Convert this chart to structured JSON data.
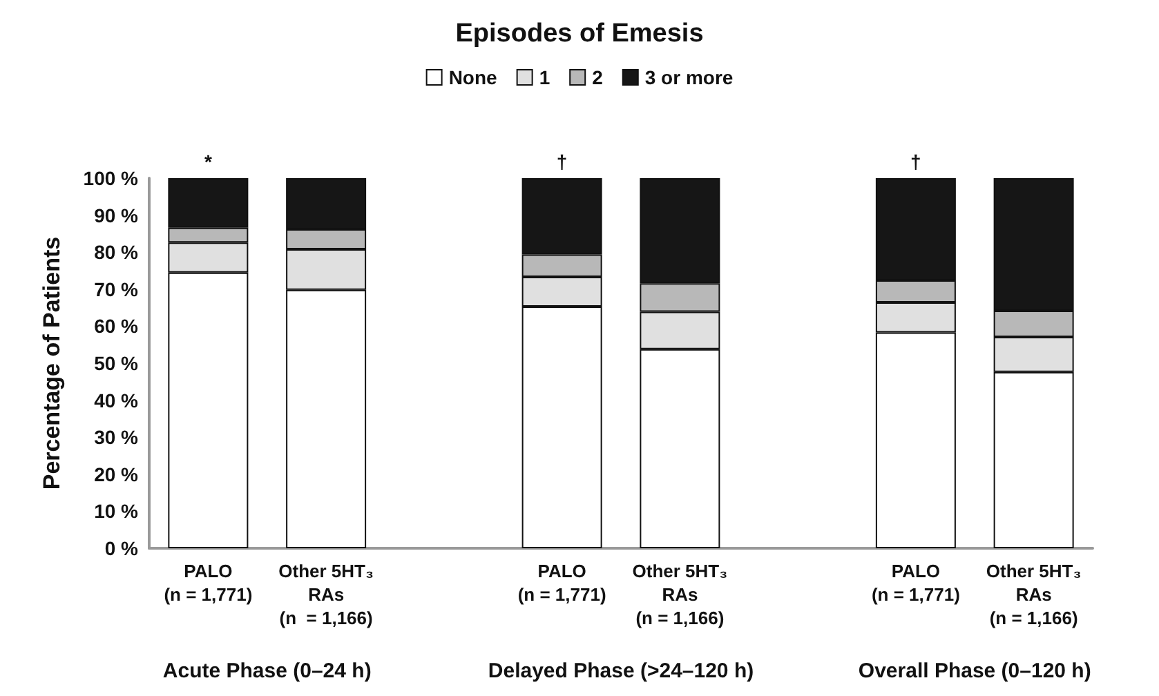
{
  "chart_data": {
    "type": "bar",
    "stacked": true,
    "title": "Episodes of Emesis",
    "ylabel": "Percentage of Patients",
    "categories": [
      "PALO\n(n = 1,771)",
      "Other 5HT₃\nRAs\n(n  = 1,166)",
      null,
      "PALO\n(n = 1,771)",
      "Other 5HT₃\nRAs\n(n = 1,166)",
      null,
      "PALO\n(n = 1,771)",
      "Other 5HT₃\nRAs\n(n = 1,166)"
    ],
    "series": [
      {
        "name": "None",
        "color": "#ffffff",
        "values": [
          74.5,
          69.8,
          null,
          65.3,
          53.8,
          null,
          58.3,
          47.6
        ]
      },
      {
        "name": "1",
        "color": "#e0e0e0",
        "values": [
          8.1,
          11.0,
          null,
          8.0,
          10.1,
          null,
          8.1,
          9.5
        ]
      },
      {
        "name": "2",
        "color": "#b8b8b8",
        "values": [
          4.0,
          5.4,
          null,
          6.1,
          7.7,
          null,
          6.0,
          7.1
        ]
      },
      {
        "name": "3 or more",
        "color": "#161616",
        "values": [
          13.4,
          13.8,
          null,
          20.6,
          28.4,
          null,
          27.6,
          35.8
        ]
      }
    ],
    "ylim": [
      0,
      100
    ],
    "yticks": [
      {
        "value": 0,
        "label": "0 %"
      },
      {
        "value": 10,
        "label": "10 %"
      },
      {
        "value": 20,
        "label": "20 %"
      },
      {
        "value": 30,
        "label": "30 %"
      },
      {
        "value": 40,
        "label": "40 %"
      },
      {
        "value": 50,
        "label": "50 %"
      },
      {
        "value": 60,
        "label": "60 %"
      },
      {
        "value": 70,
        "label": "70 %"
      },
      {
        "value": 80,
        "label": "80 %"
      },
      {
        "value": 90,
        "label": "90 %"
      },
      {
        "value": 100,
        "label": "100 %"
      }
    ],
    "grid": false,
    "legend": "top",
    "annotations": [
      "Acute Phase (0–24 h)",
      "Delayed Phase (>24–120 h)",
      "Overall Phase (0–120 h)",
      "*",
      "†",
      "†"
    ]
  }
}
